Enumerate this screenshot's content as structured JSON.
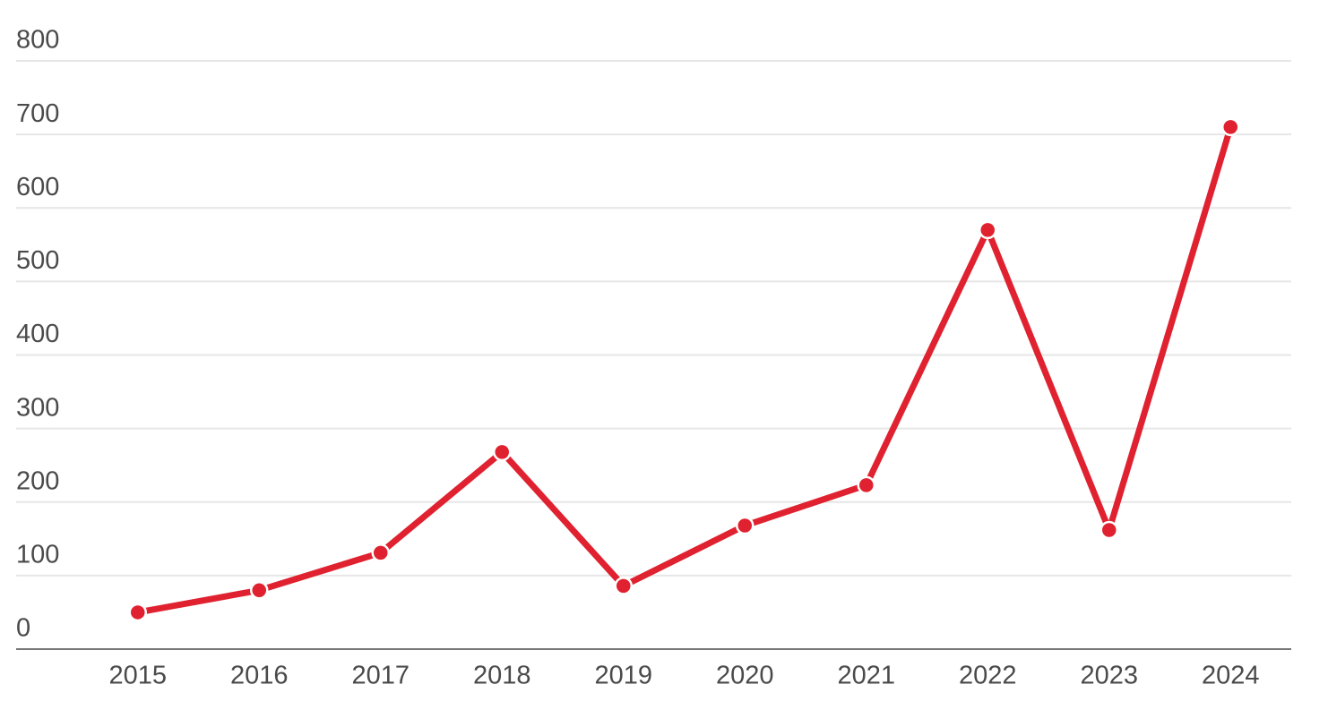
{
  "chart_data": {
    "type": "line",
    "categories": [
      "2015",
      "2016",
      "2017",
      "2018",
      "2019",
      "2020",
      "2021",
      "2022",
      "2023",
      "2024"
    ],
    "values": [
      50,
      80,
      131,
      268,
      86,
      168,
      223,
      570,
      162,
      710
    ],
    "color": "#e0212f",
    "ylim": [
      0,
      800
    ],
    "yticks": [
      0,
      100,
      200,
      300,
      400,
      500,
      600,
      700,
      800
    ],
    "grid": true
  }
}
